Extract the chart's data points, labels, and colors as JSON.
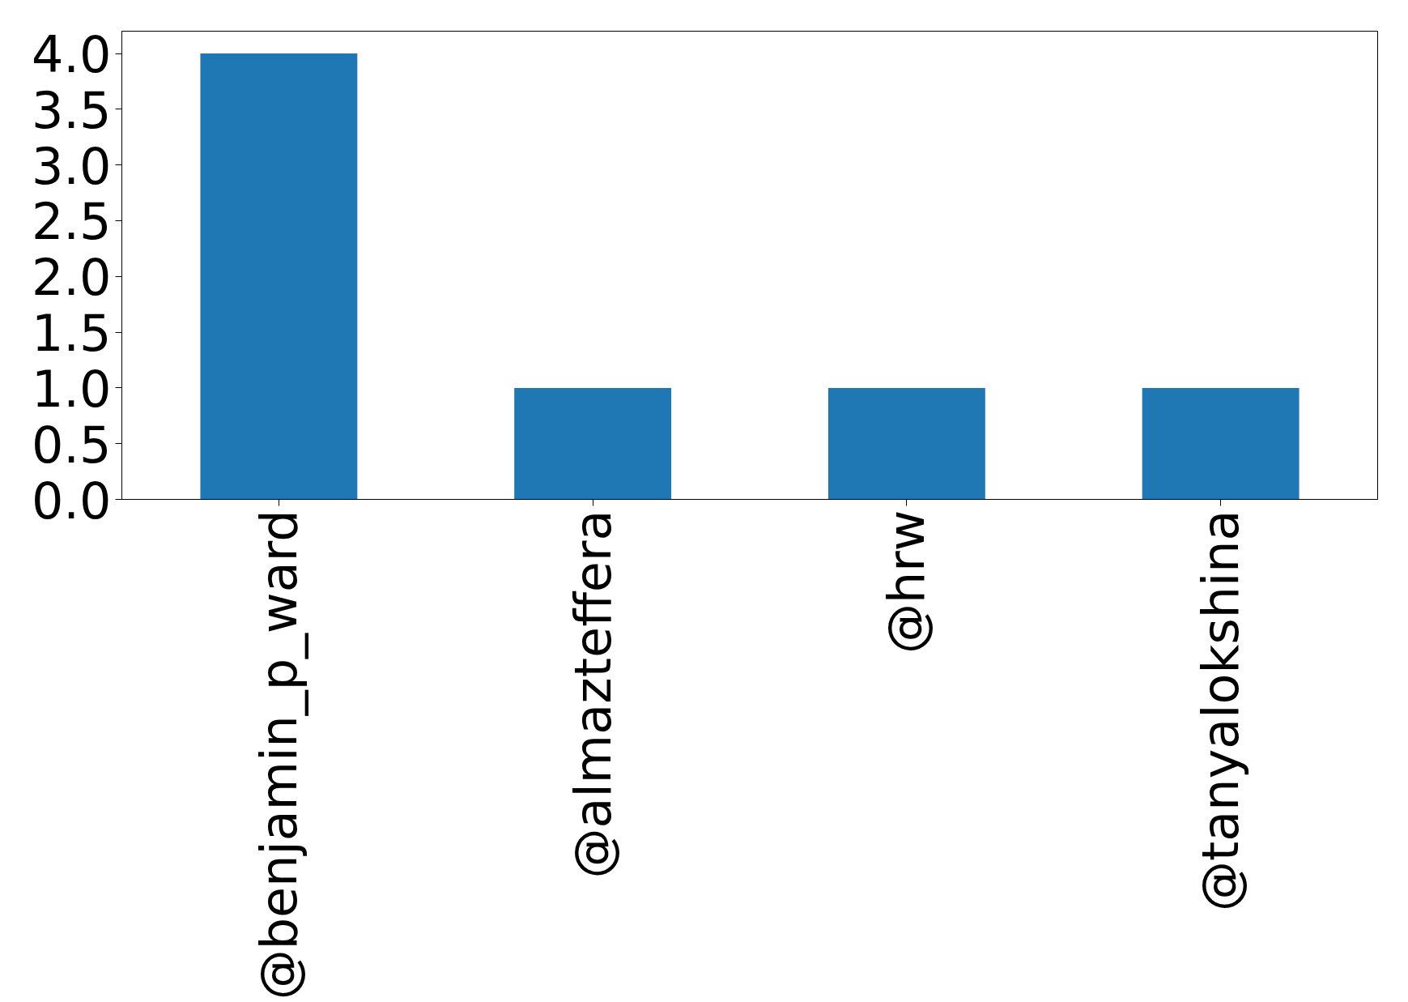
{
  "chart_data": {
    "type": "bar",
    "categories": [
      "@benjamin_p_ward",
      "@almazteffera",
      "@hrw",
      "@tanyalokshina"
    ],
    "values": [
      4,
      1,
      1,
      1
    ],
    "color": "#1f77b4",
    "ylim": [
      0,
      4.2
    ],
    "yticks": [
      {
        "value": 0,
        "label": "0.0"
      },
      {
        "value": 0.5,
        "label": "0.5"
      },
      {
        "value": 1,
        "label": "1.0"
      },
      {
        "value": 1.5,
        "label": "1.5"
      },
      {
        "value": 2,
        "label": "2.0"
      },
      {
        "value": 2.5,
        "label": "2.5"
      },
      {
        "value": 3,
        "label": "3.0"
      },
      {
        "value": 3.5,
        "label": "3.5"
      },
      {
        "value": 4,
        "label": "4.0"
      }
    ],
    "grid": false
  }
}
